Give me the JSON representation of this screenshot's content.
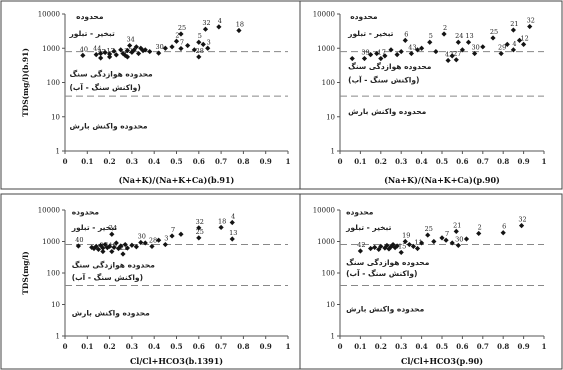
{
  "chart_data": [
    {
      "type": "scatter",
      "xlabel": "(Na+K)/(Na+K+Ca)(b.91)",
      "ylabel": "TDS(mg/l)(b.91)",
      "x_ticks": [
        "0",
        "0.1",
        "0.2",
        "0.3",
        "0.4",
        "0.5",
        "0.6",
        "0.7",
        "0.8",
        "0.9",
        "1"
      ],
      "y_ticks": [
        "1",
        "10",
        "100",
        "1000",
        "10000"
      ],
      "xlim": [
        0,
        1
      ],
      "ylim": [
        1,
        10000
      ],
      "y_scale": "log",
      "region_labels": [
        {
          "text": "محدوده",
          "x": 0.05,
          "y": 7200
        },
        {
          "text": "تبخیر - تبلور",
          "x": 0.02,
          "y": 2300
        },
        {
          "text": "محدوده هوازدگی سنگ",
          "x": 0.02,
          "y": 150
        },
        {
          "text": "(واکنش سنگ - آب)",
          "x": 0.02,
          "y": 60
        },
        {
          "text": "محدوده واکنش بارش",
          "x": 0.02,
          "y": 4.5
        }
      ],
      "ref_lines_y": [
        800,
        40
      ],
      "points": [
        {
          "x": 0.08,
          "y": 620,
          "label": "40"
        },
        {
          "x": 0.14,
          "y": 650,
          "label": "44"
        },
        {
          "x": 0.16,
          "y": 520,
          "label": "27"
        },
        {
          "x": 0.2,
          "y": 560,
          "label": "17"
        },
        {
          "x": 0.28,
          "y": 560,
          "label": "22"
        },
        {
          "x": 0.29,
          "y": 1200,
          "label": "34"
        },
        {
          "x": 0.42,
          "y": 720,
          "label": "30"
        },
        {
          "x": 0.5,
          "y": 1600,
          "label": "2"
        },
        {
          "x": 0.52,
          "y": 2600,
          "label": "25"
        },
        {
          "x": 0.52,
          "y": 980,
          "label": "7"
        },
        {
          "x": 0.6,
          "y": 560,
          "label": "28"
        },
        {
          "x": 0.6,
          "y": 1500,
          "label": "5"
        },
        {
          "x": 0.63,
          "y": 3600,
          "label": "32"
        },
        {
          "x": 0.64,
          "y": 1000,
          "label": "3"
        },
        {
          "x": 0.69,
          "y": 4200,
          "label": "4"
        },
        {
          "x": 0.78,
          "y": 3300,
          "label": "18"
        },
        {
          "x": 0.16,
          "y": 700
        },
        {
          "x": 0.18,
          "y": 750
        },
        {
          "x": 0.2,
          "y": 680
        },
        {
          "x": 0.22,
          "y": 820
        },
        {
          "x": 0.23,
          "y": 640
        },
        {
          "x": 0.25,
          "y": 900
        },
        {
          "x": 0.26,
          "y": 700
        },
        {
          "x": 0.27,
          "y": 620
        },
        {
          "x": 0.28,
          "y": 860
        },
        {
          "x": 0.3,
          "y": 760
        },
        {
          "x": 0.31,
          "y": 900
        },
        {
          "x": 0.32,
          "y": 1100
        },
        {
          "x": 0.33,
          "y": 700
        },
        {
          "x": 0.34,
          "y": 1000
        },
        {
          "x": 0.35,
          "y": 850
        },
        {
          "x": 0.36,
          "y": 900
        },
        {
          "x": 0.38,
          "y": 800
        },
        {
          "x": 0.45,
          "y": 1000
        },
        {
          "x": 0.48,
          "y": 1100
        },
        {
          "x": 0.55,
          "y": 1200
        },
        {
          "x": 0.58,
          "y": 900
        },
        {
          "x": 0.62,
          "y": 1300
        }
      ]
    },
    {
      "type": "scatter",
      "xlabel": "(Na+K)/(Na+K+Ca)(p.90)",
      "ylabel": "",
      "x_ticks": [
        "0",
        "0.1",
        "0.2",
        "0.3",
        "0.4",
        "0.5",
        "0.6",
        "0.7",
        "0.8",
        "0.9",
        "1"
      ],
      "y_ticks": [
        "1",
        "10",
        "100",
        "1000",
        "10000"
      ],
      "xlim": [
        0,
        1
      ],
      "ylim": [
        1,
        10000
      ],
      "y_scale": "log",
      "region_labels": [
        {
          "text": "محدوده",
          "x": 0.05,
          "y": 7200
        },
        {
          "text": "تبخیر - تبلور",
          "x": 0.04,
          "y": 2300
        },
        {
          "text": "محدوده هوازدگی سنگ",
          "x": 0.04,
          "y": 250
        },
        {
          "text": "(واکنش سنگ - آب)",
          "x": 0.04,
          "y": 100
        },
        {
          "text": "محدوده واکنش بارش",
          "x": 0.04,
          "y": 12
        }
      ],
      "ref_lines_y": [
        800,
        40
      ],
      "points": [
        {
          "x": 0.06,
          "y": 500
        },
        {
          "x": 0.12,
          "y": 500,
          "label": "39"
        },
        {
          "x": 0.2,
          "y": 500,
          "label": "17"
        },
        {
          "x": 0.32,
          "y": 1700,
          "label": "6"
        },
        {
          "x": 0.35,
          "y": 700,
          "label": "43"
        },
        {
          "x": 0.44,
          "y": 1500,
          "label": "5"
        },
        {
          "x": 0.51,
          "y": 2600,
          "label": "2"
        },
        {
          "x": 0.53,
          "y": 440,
          "label": "42"
        },
        {
          "x": 0.57,
          "y": 460,
          "label": "27"
        },
        {
          "x": 0.58,
          "y": 1500,
          "label": "24"
        },
        {
          "x": 0.63,
          "y": 1500,
          "label": "13"
        },
        {
          "x": 0.66,
          "y": 700,
          "label": "30"
        },
        {
          "x": 0.75,
          "y": 2000,
          "label": "25"
        },
        {
          "x": 0.79,
          "y": 700,
          "label": "29"
        },
        {
          "x": 0.85,
          "y": 3400,
          "label": "21"
        },
        {
          "x": 0.85,
          "y": 900,
          "label": "4"
        },
        {
          "x": 0.9,
          "y": 1300,
          "label": "12"
        },
        {
          "x": 0.93,
          "y": 4300,
          "label": "32"
        },
        {
          "x": 0.15,
          "y": 650
        },
        {
          "x": 0.18,
          "y": 700
        },
        {
          "x": 0.22,
          "y": 600
        },
        {
          "x": 0.25,
          "y": 900
        },
        {
          "x": 0.28,
          "y": 650
        },
        {
          "x": 0.3,
          "y": 800
        },
        {
          "x": 0.38,
          "y": 900
        },
        {
          "x": 0.4,
          "y": 1000
        },
        {
          "x": 0.47,
          "y": 800
        },
        {
          "x": 0.55,
          "y": 600
        },
        {
          "x": 0.6,
          "y": 900
        },
        {
          "x": 0.7,
          "y": 1100
        },
        {
          "x": 0.82,
          "y": 1300
        },
        {
          "x": 0.88,
          "y": 1700
        }
      ]
    },
    {
      "type": "scatter",
      "xlabel": "Cl/Cl+HCO3(b.1391)",
      "ylabel": "TDS(mg/l)",
      "x_ticks": [
        "0",
        "0.1",
        "0.2",
        "0.3",
        "0.4",
        "0.5",
        "0.6",
        "0.7",
        "0.8",
        "0.9",
        "1"
      ],
      "y_ticks": [
        "1",
        "10",
        "100",
        "1000",
        "10000"
      ],
      "xlim": [
        0,
        1
      ],
      "ylim": [
        1,
        10000
      ],
      "y_scale": "log",
      "region_labels": [
        {
          "text": "محدوده",
          "x": 0.03,
          "y": 7200
        },
        {
          "text": "تبخیر - تبلور",
          "x": 0.03,
          "y": 2300
        },
        {
          "text": "محدوده هوازدگی سنگ",
          "x": 0.03,
          "y": 150
        },
        {
          "text": "(واکنش سنگ - آب)",
          "x": 0.03,
          "y": 60
        },
        {
          "text": "محدوده واکنش بارش",
          "x": 0.03,
          "y": 4.5
        }
      ],
      "ref_lines_y": [
        800,
        40
      ],
      "points": [
        {
          "x": 0.06,
          "y": 720,
          "label": "40"
        },
        {
          "x": 0.17,
          "y": 480,
          "label": "27"
        },
        {
          "x": 0.21,
          "y": 480,
          "label": "19"
        },
        {
          "x": 0.21,
          "y": 1700,
          "label": "24"
        },
        {
          "x": 0.26,
          "y": 400,
          "label": "22"
        },
        {
          "x": 0.34,
          "y": 930,
          "label": "30"
        },
        {
          "x": 0.39,
          "y": 700,
          "label": "28"
        },
        {
          "x": 0.45,
          "y": 800,
          "label": "3"
        },
        {
          "x": 0.48,
          "y": 1500,
          "label": "7"
        },
        {
          "x": 0.6,
          "y": 1300,
          "label": "25"
        },
        {
          "x": 0.6,
          "y": 2700,
          "label": "32"
        },
        {
          "x": 0.7,
          "y": 2800,
          "label": "18"
        },
        {
          "x": 0.75,
          "y": 1200,
          "label": "13"
        },
        {
          "x": 0.75,
          "y": 4000,
          "label": "4"
        },
        {
          "x": 0.12,
          "y": 650
        },
        {
          "x": 0.13,
          "y": 600
        },
        {
          "x": 0.14,
          "y": 700
        },
        {
          "x": 0.15,
          "y": 560
        },
        {
          "x": 0.16,
          "y": 750
        },
        {
          "x": 0.17,
          "y": 620
        },
        {
          "x": 0.18,
          "y": 800
        },
        {
          "x": 0.19,
          "y": 640
        },
        {
          "x": 0.2,
          "y": 700
        },
        {
          "x": 0.22,
          "y": 650
        },
        {
          "x": 0.23,
          "y": 900
        },
        {
          "x": 0.24,
          "y": 600
        },
        {
          "x": 0.25,
          "y": 720
        },
        {
          "x": 0.27,
          "y": 800
        },
        {
          "x": 0.28,
          "y": 620
        },
        {
          "x": 0.3,
          "y": 760
        },
        {
          "x": 0.32,
          "y": 680
        },
        {
          "x": 0.36,
          "y": 900
        },
        {
          "x": 0.42,
          "y": 1100
        },
        {
          "x": 0.52,
          "y": 1700
        }
      ]
    },
    {
      "type": "scatter",
      "xlabel": "Cl/Cl+HCO3(p.90)",
      "ylabel": "",
      "x_ticks": [
        "0",
        "0.1",
        "0.2",
        "0.3",
        "0.4",
        "0.5",
        "0.6",
        "0.7",
        "0.8",
        "0.9",
        "1"
      ],
      "y_ticks": [
        "1",
        "10",
        "100",
        "1000",
        "10000"
      ],
      "xlim": [
        0,
        1
      ],
      "ylim": [
        1,
        10000
      ],
      "y_scale": "log",
      "region_labels": [
        {
          "text": "محدوده",
          "x": 0.03,
          "y": 7200
        },
        {
          "text": "تبخیر - تبلور",
          "x": 0.03,
          "y": 2300
        },
        {
          "text": "محدوده هوازدگی سنگ",
          "x": 0.03,
          "y": 180
        },
        {
          "text": "(واکنش سنگ - آب)",
          "x": 0.03,
          "y": 80
        },
        {
          "text": "محدوده واکنش بارش",
          "x": 0.03,
          "y": 6
        }
      ],
      "ref_lines_y": [
        800,
        40
      ],
      "points": [
        {
          "x": 0.1,
          "y": 500,
          "label": "42"
        },
        {
          "x": 0.3,
          "y": 450,
          "label": "15"
        },
        {
          "x": 0.32,
          "y": 1000,
          "label": "19"
        },
        {
          "x": 0.38,
          "y": 600,
          "label": "11"
        },
        {
          "x": 0.43,
          "y": 1600,
          "label": "25"
        },
        {
          "x": 0.52,
          "y": 1100,
          "label": "7"
        },
        {
          "x": 0.57,
          "y": 2100,
          "label": "21"
        },
        {
          "x": 0.58,
          "y": 750,
          "label": "30"
        },
        {
          "x": 0.68,
          "y": 1800,
          "label": "2"
        },
        {
          "x": 0.8,
          "y": 1900,
          "label": "6"
        },
        {
          "x": 0.89,
          "y": 3200,
          "label": "32"
        },
        {
          "x": 0.15,
          "y": 600
        },
        {
          "x": 0.17,
          "y": 650
        },
        {
          "x": 0.19,
          "y": 560
        },
        {
          "x": 0.2,
          "y": 700
        },
        {
          "x": 0.22,
          "y": 620
        },
        {
          "x": 0.23,
          "y": 750
        },
        {
          "x": 0.24,
          "y": 580
        },
        {
          "x": 0.25,
          "y": 680
        },
        {
          "x": 0.26,
          "y": 800
        },
        {
          "x": 0.27,
          "y": 640
        },
        {
          "x": 0.28,
          "y": 720
        },
        {
          "x": 0.34,
          "y": 800
        },
        {
          "x": 0.36,
          "y": 700
        },
        {
          "x": 0.4,
          "y": 900
        },
        {
          "x": 0.46,
          "y": 1000
        },
        {
          "x": 0.5,
          "y": 1300
        },
        {
          "x": 0.55,
          "y": 900
        },
        {
          "x": 0.62,
          "y": 1200
        }
      ]
    }
  ]
}
